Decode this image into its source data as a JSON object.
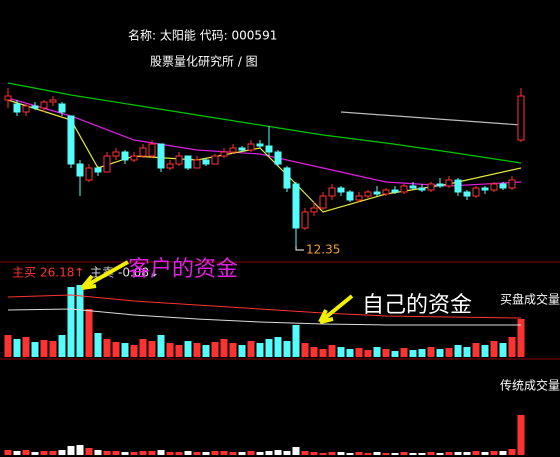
{
  "chart_data": {
    "type": "candlestick",
    "title": "名称: 太阳能 代码: 000591",
    "subtitle": "股票量化研究所 / 图",
    "up_color": "#ff3232",
    "down_color": "#54fcfc",
    "ylim": [
      11.75,
      18.25
    ],
    "open": [
      16.0,
      15.9,
      15.7,
      15.85,
      15.8,
      15.95,
      15.9,
      15.6,
      14.4,
      14.0,
      14.3,
      14.2,
      14.6,
      14.7,
      14.5,
      14.6,
      14.6,
      14.9,
      14.3,
      14.4,
      14.6,
      14.3,
      14.5,
      14.4,
      14.6,
      14.7,
      14.8,
      14.75,
      14.9,
      14.85,
      14.7,
      14.3,
      13.9,
      12.8,
      13.2,
      13.3,
      13.6,
      13.8,
      13.7,
      13.5,
      13.6,
      13.7,
      13.65,
      13.75,
      13.7,
      13.85,
      13.8,
      13.75,
      13.9,
      13.85,
      14.0,
      13.7,
      13.6,
      13.8,
      13.75,
      13.9,
      13.8,
      15.0
    ],
    "high": [
      16.3,
      16.0,
      15.9,
      15.95,
      16.0,
      16.1,
      15.95,
      15.6,
      14.5,
      14.4,
      14.35,
      14.7,
      14.8,
      14.75,
      14.7,
      14.9,
      15.0,
      14.9,
      14.5,
      14.7,
      14.6,
      14.6,
      14.55,
      14.65,
      14.8,
      14.9,
      14.85,
      15.0,
      15.0,
      15.35,
      14.75,
      14.35,
      13.95,
      13.3,
      13.45,
      13.7,
      13.9,
      13.85,
      13.75,
      13.7,
      13.75,
      13.85,
      13.8,
      13.85,
      13.9,
      13.95,
      13.9,
      13.95,
      14.05,
      14.1,
      14.05,
      13.75,
      13.85,
      13.85,
      13.95,
      13.95,
      14.1,
      16.3
    ],
    "low": [
      15.8,
      15.6,
      15.6,
      15.75,
      15.7,
      15.85,
      15.6,
      14.3,
      13.6,
      13.95,
      14.1,
      14.2,
      14.5,
      14.4,
      14.45,
      14.55,
      14.55,
      14.2,
      14.25,
      14.35,
      14.25,
      14.3,
      14.35,
      14.4,
      14.55,
      14.65,
      14.7,
      14.7,
      14.8,
      14.6,
      14.35,
      13.7,
      12.35,
      12.75,
      13.1,
      13.25,
      13.5,
      13.6,
      13.45,
      13.45,
      13.55,
      13.6,
      13.6,
      13.65,
      13.65,
      13.75,
      13.7,
      13.7,
      13.8,
      13.8,
      13.6,
      13.5,
      13.55,
      13.65,
      13.7,
      13.75,
      13.75,
      14.95
    ],
    "close": [
      16.1,
      15.7,
      15.85,
      15.8,
      15.95,
      16.0,
      15.7,
      14.4,
      14.1,
      14.3,
      14.2,
      14.6,
      14.7,
      14.5,
      14.6,
      14.8,
      14.9,
      14.3,
      14.4,
      14.6,
      14.3,
      14.5,
      14.4,
      14.6,
      14.7,
      14.8,
      14.75,
      14.9,
      14.85,
      14.7,
      14.4,
      13.8,
      12.8,
      13.2,
      13.3,
      13.6,
      13.8,
      13.7,
      13.5,
      13.6,
      13.7,
      13.65,
      13.75,
      13.7,
      13.85,
      13.8,
      13.75,
      13.9,
      13.85,
      14.0,
      13.7,
      13.6,
      13.8,
      13.75,
      13.9,
      13.8,
      14.0,
      16.1
    ],
    "low_label": "12.35",
    "lines": [
      {
        "color": "#00c800",
        "x": [
          0,
          7,
          14,
          21,
          28,
          35,
          42,
          49,
          57
        ],
        "values": [
          16.425,
          16.125,
          15.875,
          15.625,
          15.375,
          15.125,
          14.925,
          14.7,
          14.425
        ]
      },
      {
        "color": "#e020e0",
        "x": [
          0,
          7,
          14,
          21,
          28,
          35,
          42,
          49,
          57
        ],
        "values": [
          16.05,
          15.6,
          15.0,
          14.75,
          14.65,
          14.3,
          13.95,
          13.85,
          13.95
        ]
      },
      {
        "color": "#e8e840",
        "x": [
          0,
          7,
          10,
          14,
          21,
          28,
          32,
          35,
          42,
          49,
          57
        ],
        "values": [
          16.0,
          15.5,
          14.3,
          14.6,
          14.5,
          14.8,
          13.9,
          13.2,
          13.65,
          13.9,
          14.3
        ]
      },
      {
        "color": "#bbbbbb",
        "x": [
          37,
          57
        ],
        "values": [
          15.7,
          15.375
        ]
      }
    ],
    "buy_panel": {
      "label": "买盘成交量",
      "ylim": [
        0,
        95
      ],
      "values": [
        22,
        18,
        20,
        15,
        17,
        16,
        22,
        70,
        72,
        48,
        24,
        18,
        15,
        14,
        12,
        18,
        16,
        22,
        14,
        12,
        16,
        14,
        12,
        15,
        18,
        14,
        12,
        16,
        14,
        18,
        20,
        16,
        32,
        14,
        10,
        8,
        12,
        10,
        8,
        9,
        7,
        10,
        8,
        6,
        9,
        7,
        8,
        10,
        8,
        9,
        12,
        10,
        14,
        12,
        16,
        14,
        20,
        38
      ],
      "series": [
        {
          "name": "主买",
          "color": "#ff3232",
          "value": 26.18,
          "value_label": "26.18↑",
          "x": [
            0,
            7,
            14,
            21,
            28,
            35,
            42,
            49,
            57
          ],
          "values": [
            60,
            62,
            56,
            52,
            48,
            44,
            41,
            40,
            39
          ]
        },
        {
          "name": "主卖",
          "color": "#dddddd",
          "value": -0.08,
          "value_label": "-0.08↓",
          "x": [
            0,
            7,
            14,
            21,
            28,
            35,
            42,
            49,
            57
          ],
          "values": [
            47,
            48,
            42,
            38,
            35,
            33,
            32,
            32,
            32
          ]
        }
      ]
    },
    "volume_panel": {
      "label": "传统成交量",
      "ylim": [
        0,
        95
      ],
      "values": [
        5,
        4,
        5,
        3,
        4,
        4,
        5,
        9,
        10,
        7,
        5,
        4,
        4,
        3,
        3,
        4,
        4,
        5,
        3,
        3,
        4,
        3,
        3,
        4,
        4,
        3,
        3,
        4,
        3,
        4,
        5,
        4,
        8,
        4,
        3,
        2,
        3,
        3,
        2,
        3,
        2,
        3,
        2,
        2,
        3,
        2,
        2,
        3,
        2,
        3,
        3,
        3,
        4,
        3,
        4,
        4,
        6,
        40
      ]
    },
    "annotations": [
      "客户的资金",
      "自己的资金"
    ]
  }
}
